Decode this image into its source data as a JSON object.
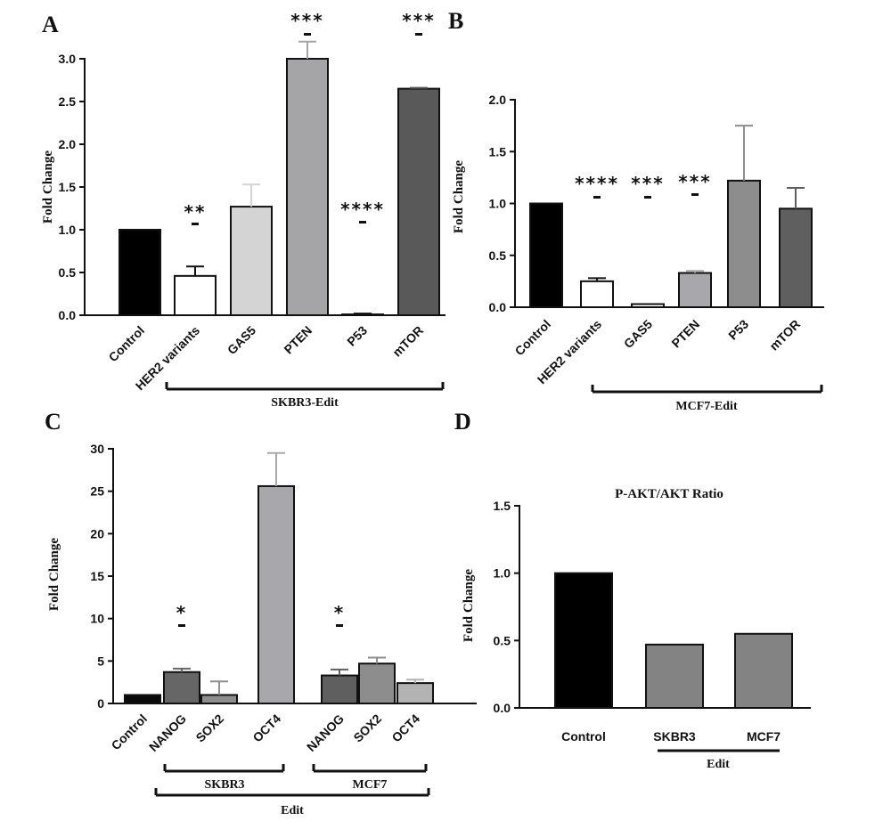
{
  "chart_data": [
    {
      "panel": "A",
      "type": "bar",
      "ylabel": "Fold Change",
      "ylim": [
        0,
        3.0
      ],
      "yticks": [
        "0.0",
        "0.5",
        "1.0",
        "1.5",
        "2.0",
        "2.5",
        "3.0"
      ],
      "categories": [
        "Control",
        "HER2 variants",
        "GAS5",
        "PTEN",
        "P53",
        "mTOR"
      ],
      "values": [
        1.0,
        0.46,
        1.27,
        3.0,
        0.01,
        2.65
      ],
      "errors": [
        0,
        0.11,
        0.26,
        0.2,
        0.01,
        0.01
      ],
      "colors": [
        "#000000",
        "#ffffff",
        "#d4d4d4",
        "#a5a5a7",
        "#ffffff",
        "#595959"
      ],
      "significance": [
        "",
        "**",
        "",
        "***",
        "****",
        "***"
      ],
      "group_label": "SKBR3-Edit"
    },
    {
      "panel": "B",
      "type": "bar",
      "ylabel": "Fold Change",
      "ylim": [
        0,
        2.0
      ],
      "yticks": [
        "0.0",
        "0.5",
        "1.0",
        "1.5",
        "2.0"
      ],
      "categories": [
        "Control",
        "HER2 variants",
        "GAS5",
        "PTEN",
        "P53",
        "mTOR"
      ],
      "values": [
        1.0,
        0.25,
        0.03,
        0.33,
        1.22,
        0.95
      ],
      "errors": [
        0,
        0.03,
        0,
        0.02,
        0.53,
        0.2
      ],
      "colors": [
        "#000000",
        "#ffffff",
        "#ffffff",
        "#a8a8ac",
        "#8d8d8d",
        "#5f5f5f"
      ],
      "significance": [
        "",
        "****",
        "***",
        "***",
        "",
        ""
      ],
      "group_label": "MCF7-Edit"
    },
    {
      "panel": "C",
      "type": "bar",
      "ylabel": "Fold Change",
      "ylim": [
        0,
        30
      ],
      "yticks": [
        "0",
        "5",
        "10",
        "15",
        "20",
        "25",
        "30"
      ],
      "categories": [
        "Control",
        "NANOG",
        "SOX2",
        "OCT4",
        "NANOG",
        "SOX2",
        "OCT4"
      ],
      "values": [
        1.0,
        3.7,
        1.0,
        25.6,
        3.3,
        4.7,
        2.4
      ],
      "errors": [
        0,
        0.4,
        1.6,
        3.9,
        0.7,
        0.7,
        0.4
      ],
      "colors": [
        "#0a0a0a",
        "#666666",
        "#8e8e8e",
        "#a8a8ac",
        "#5f5f5f",
        "#8d8d8d",
        "#b3b3b3"
      ],
      "significance": [
        "",
        "*",
        "",
        "",
        "*",
        "",
        ""
      ],
      "subgroups": [
        "SKBR3",
        "MCF7"
      ],
      "group_label": "Edit"
    },
    {
      "panel": "D",
      "type": "bar",
      "title": "P-AKT/AKT Ratio",
      "ylabel": "Fold Change",
      "ylim": [
        0,
        1.5
      ],
      "yticks": [
        "0.0",
        "0.5",
        "1.0",
        "1.5"
      ],
      "categories": [
        "Control",
        "SKBR3",
        "MCF7"
      ],
      "values": [
        1.0,
        0.47,
        0.55
      ],
      "colors": [
        "#000000",
        "#838383",
        "#838383"
      ],
      "group_label": "Edit"
    }
  ]
}
